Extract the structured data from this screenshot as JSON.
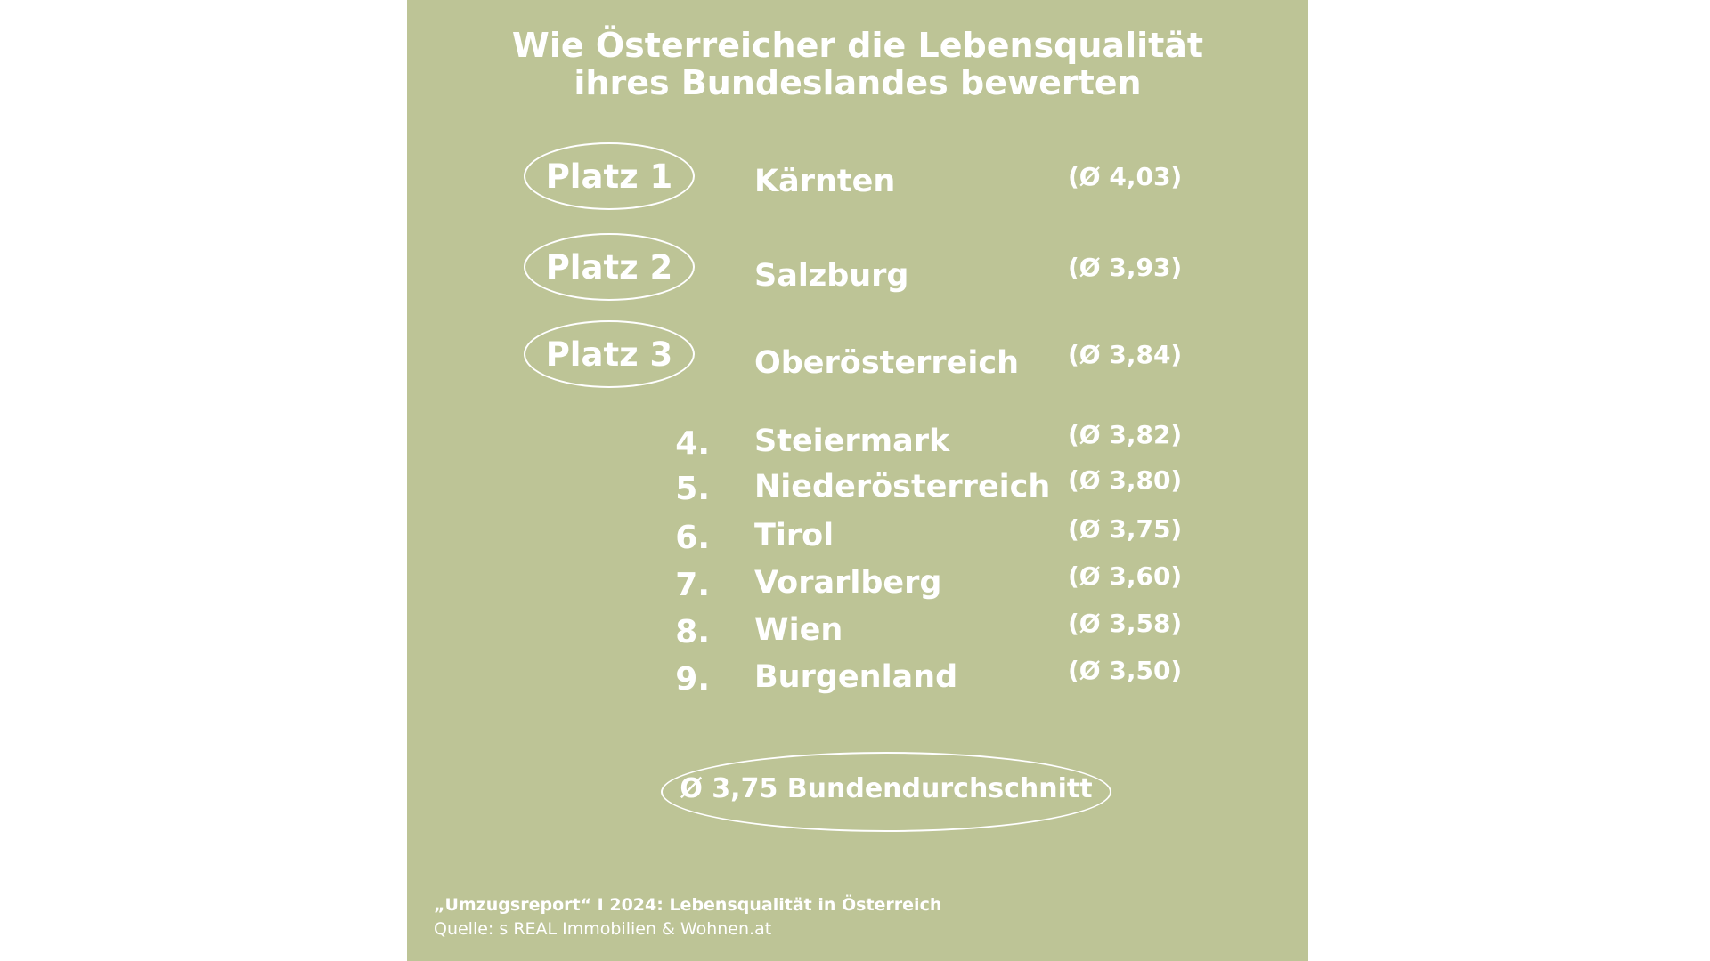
{
  "colors": {
    "background": "#bdc496",
    "text": "#ffffff",
    "page": "#ffffff"
  },
  "chart_data": {
    "type": "table",
    "title": "Wie Österreicher die Lebensqualität ihres Bundeslandes bewerten",
    "title_lines": [
      "Wie Österreicher die Lebensqualität",
      "ihres Bundeslandes bewerten"
    ],
    "rows": [
      {
        "rank": "Platz 1",
        "name": "Kärnten",
        "value": 4.03,
        "value_label": "(Ø 4,03)",
        "highlight": true
      },
      {
        "rank": "Platz 2",
        "name": "Salzburg",
        "value": 3.93,
        "value_label": "(Ø 3,93)",
        "highlight": true
      },
      {
        "rank": "Platz 3",
        "name": "Oberösterreich",
        "value": 3.84,
        "value_label": "(Ø 3,84)",
        "highlight": true
      },
      {
        "rank": "4.",
        "name": "Steiermark",
        "value": 3.82,
        "value_label": "(Ø 3,82)",
        "highlight": false
      },
      {
        "rank": "5.",
        "name": "Niederösterreich",
        "value": 3.8,
        "value_label": "(Ø 3,80)",
        "highlight": false
      },
      {
        "rank": "6.",
        "name": "Tirol",
        "value": 3.75,
        "value_label": "(Ø 3,75)",
        "highlight": false
      },
      {
        "rank": "7.",
        "name": "Vorarlberg",
        "value": 3.6,
        "value_label": "(Ø 3,60)",
        "highlight": false
      },
      {
        "rank": "8.",
        "name": "Wien",
        "value": 3.58,
        "value_label": "(Ø 3,58)",
        "highlight": false
      },
      {
        "rank": "9.",
        "name": "Burgenland",
        "value": 3.5,
        "value_label": "(Ø 3,50)",
        "highlight": false
      }
    ],
    "average": {
      "value": 3.75,
      "label": "Ø 3,75 Bundendurchschnitt"
    }
  },
  "footer": {
    "source_title": "„Umzugsreport“ I 2024: Lebensqualität in Österreich",
    "source": "Quelle: s REAL Immobilien & Wohnen.at"
  }
}
